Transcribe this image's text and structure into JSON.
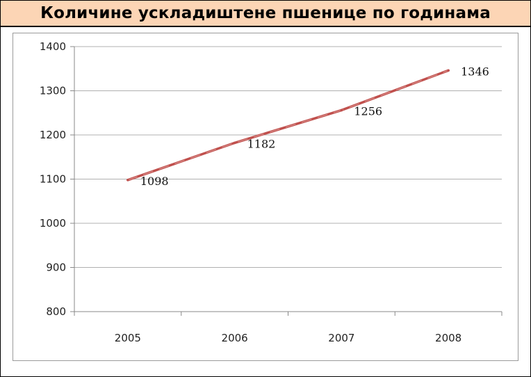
{
  "chart_data": {
    "type": "line",
    "title": "Количине ускладиштене пшенице по годинама",
    "categories": [
      "2005",
      "2006",
      "2007",
      "2008"
    ],
    "series": [
      {
        "values": [
          1098,
          1182,
          1256,
          1346
        ]
      }
    ],
    "ylim": [
      800,
      1400
    ],
    "yticks": [
      800,
      900,
      1000,
      1100,
      1200,
      1300,
      1400
    ],
    "grid": true,
    "legend": "none",
    "colors": {
      "line": "#c0504d",
      "title_bg": "#fcd5b5",
      "grid": "#b0b0b0"
    }
  }
}
